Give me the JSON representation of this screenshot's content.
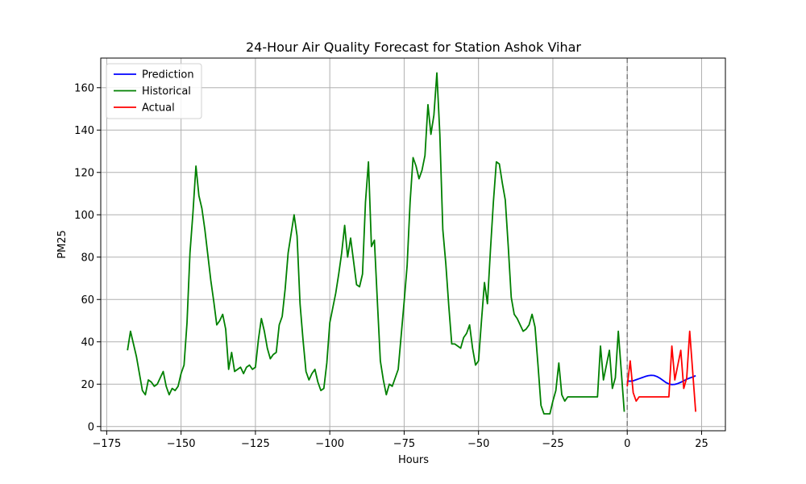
{
  "chart_data": {
    "type": "line",
    "title": "24-Hour Air Quality Forecast for Station Ashok Vihar",
    "xlabel": "Hours",
    "ylabel": "PM25",
    "xlim": [
      -177,
      33
    ],
    "ylim": [
      -2,
      174
    ],
    "xticks": [
      -175,
      -150,
      -125,
      -100,
      -75,
      -50,
      -25,
      0,
      25
    ],
    "yticks": [
      0,
      20,
      40,
      60,
      80,
      100,
      120,
      140,
      160
    ],
    "grid": true,
    "legend_position": "top-left",
    "vline": {
      "x": 0,
      "color": "#808080",
      "style": "dashed"
    },
    "series": [
      {
        "name": "Prediction",
        "color": "#0000ff",
        "x": [
          0,
          1,
          2,
          3,
          4,
          5,
          6,
          7,
          8,
          9,
          10,
          11,
          12,
          13,
          14,
          15,
          16,
          17,
          18,
          19,
          20,
          21,
          22,
          23
        ],
        "y": [
          21.5,
          21.4,
          21.6,
          22.1,
          22.6,
          23.1,
          23.6,
          24.0,
          24.2,
          24.1,
          23.6,
          22.8,
          21.8,
          20.8,
          20.1,
          19.8,
          19.9,
          20.3,
          20.9,
          21.6,
          22.3,
          22.9,
          23.4,
          24.0
        ]
      },
      {
        "name": "Historical",
        "color": "#008000",
        "x": [
          -168,
          -167,
          -166,
          -165,
          -164,
          -163,
          -162,
          -161,
          -160,
          -159,
          -158,
          -157,
          -156,
          -155,
          -154,
          -153,
          -152,
          -151,
          -150,
          -149,
          -148,
          -147,
          -146,
          -145,
          -144,
          -143,
          -142,
          -141,
          -140,
          -139,
          -138,
          -137,
          -136,
          -135,
          -134,
          -133,
          -132,
          -131,
          -130,
          -129,
          -128,
          -127,
          -126,
          -125,
          -124,
          -123,
          -122,
          -121,
          -120,
          -119,
          -118,
          -117,
          -116,
          -115,
          -114,
          -113,
          -112,
          -111,
          -110,
          -109,
          -108,
          -107,
          -106,
          -105,
          -104,
          -103,
          -102,
          -101,
          -100,
          -99,
          -98,
          -97,
          -96,
          -95,
          -94,
          -93,
          -92,
          -91,
          -90,
          -89,
          -88,
          -87,
          -86,
          -85,
          -84,
          -83,
          -82,
          -81,
          -80,
          -79,
          -78,
          -77,
          -76,
          -75,
          -74,
          -73,
          -72,
          -71,
          -70,
          -69,
          -68,
          -67,
          -66,
          -65,
          -64,
          -63,
          -62,
          -61,
          -60,
          -59,
          -58,
          -57,
          -56,
          -55,
          -54,
          -53,
          -52,
          -51,
          -50,
          -49,
          -48,
          -47,
          -46,
          -45,
          -44,
          -43,
          -42,
          -41,
          -40,
          -39,
          -38,
          -37,
          -36,
          -35,
          -34,
          -33,
          -32,
          -31,
          -30,
          -29,
          -28,
          -27,
          -26,
          -25,
          -24,
          -23,
          -22,
          -21,
          -20,
          -19,
          -18,
          -17,
          -16,
          -15,
          -14,
          -13,
          -12,
          -11,
          -10,
          -9,
          -8,
          -7,
          -6,
          -5,
          -4,
          -3,
          -2,
          -1
        ],
        "y": [
          36,
          45,
          39,
          33,
          25,
          17,
          15,
          22,
          21,
          19,
          20,
          23,
          26,
          19,
          15,
          18,
          17,
          19,
          25,
          29,
          49,
          82,
          101,
          123,
          109,
          103,
          93,
          81,
          69,
          59,
          48,
          50,
          53,
          46,
          27,
          35,
          26,
          27,
          28,
          25,
          28,
          29,
          27,
          28,
          41,
          51,
          45,
          37,
          32,
          34,
          35,
          48,
          52,
          65,
          82,
          91,
          100,
          90,
          58,
          41,
          26,
          22,
          25,
          27,
          21,
          17,
          18,
          30,
          49,
          56,
          63,
          72,
          82,
          95,
          80,
          89,
          78,
          67,
          66,
          72,
          106,
          125,
          85,
          88,
          59,
          31,
          22,
          15,
          20,
          19,
          23,
          27,
          43,
          59,
          76,
          106,
          127,
          123,
          117,
          121,
          128,
          152,
          138,
          147,
          167,
          138,
          93,
          77,
          57,
          39,
          39,
          38,
          37,
          42,
          44,
          48,
          37,
          29,
          31,
          50,
          68,
          58,
          83,
          106,
          125,
          124,
          115,
          107,
          85,
          61,
          53,
          51,
          48,
          45,
          46,
          48,
          53,
          47,
          29,
          10,
          6,
          6,
          6,
          12,
          17,
          30,
          15,
          12,
          14,
          14,
          14,
          14,
          14,
          14,
          14,
          14,
          14,
          14,
          14,
          38,
          22,
          29,
          36,
          18,
          23,
          45,
          26,
          7
        ]
      },
      {
        "name": "Actual",
        "color": "#ff0000",
        "x": [
          0,
          1,
          2,
          3,
          4,
          5,
          6,
          7,
          8,
          9,
          10,
          11,
          12,
          13,
          14,
          15,
          16,
          17,
          18,
          19,
          20,
          21,
          22,
          23
        ],
        "y": [
          19,
          31,
          16,
          12,
          14,
          14,
          14,
          14,
          14,
          14,
          14,
          14,
          14,
          14,
          14,
          38,
          22,
          29,
          36,
          18,
          23,
          45,
          26,
          7
        ]
      }
    ]
  }
}
